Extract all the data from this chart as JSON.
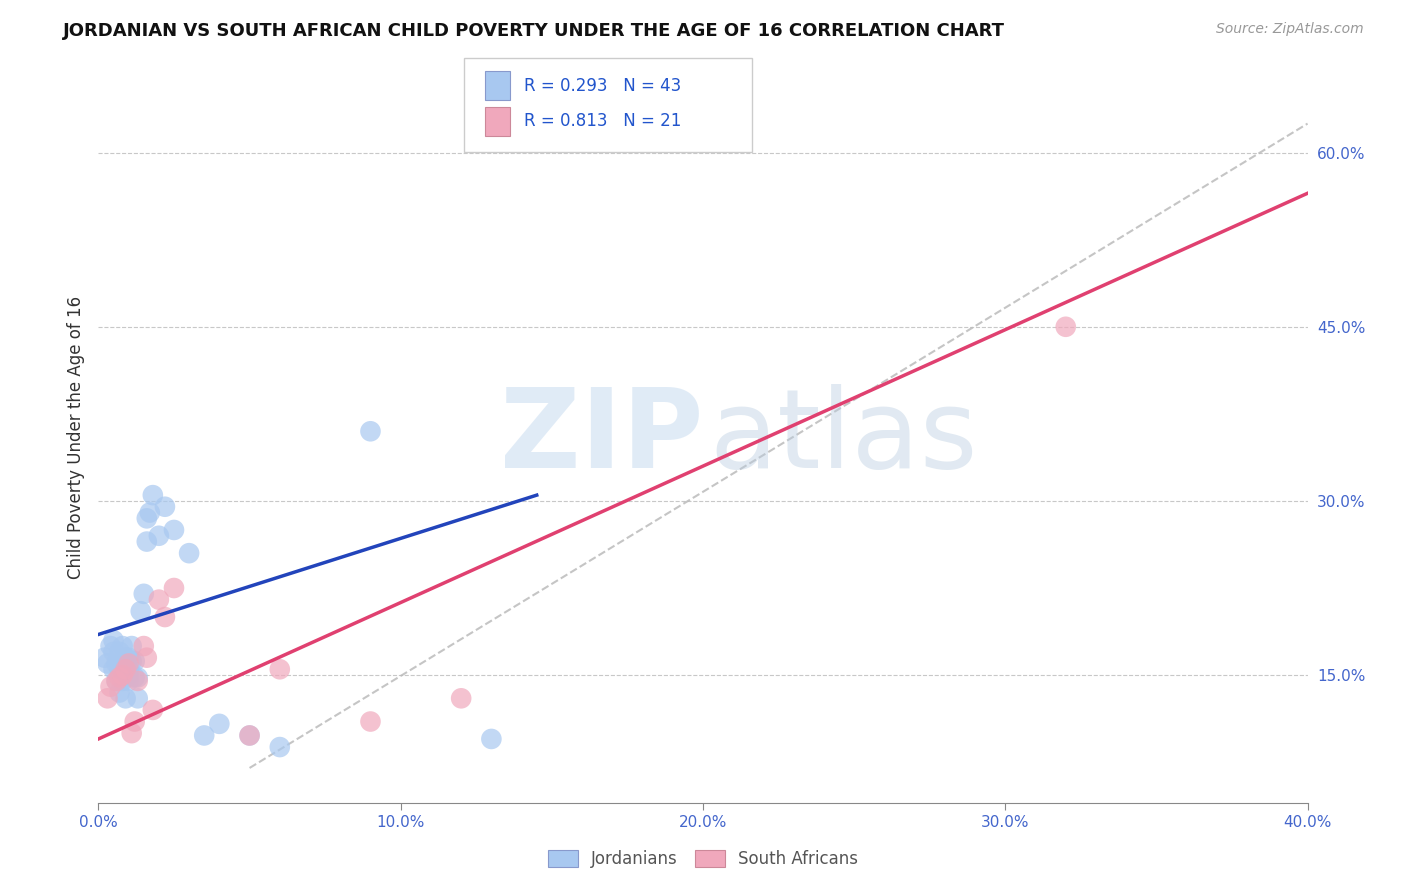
{
  "title": "JORDANIAN VS SOUTH AFRICAN CHILD POVERTY UNDER THE AGE OF 16 CORRELATION CHART",
  "source": "Source: ZipAtlas.com",
  "ylabel": "Child Poverty Under the Age of 16",
  "xlim": [
    0.0,
    0.4
  ],
  "ylim": [
    0.04,
    0.67
  ],
  "xticks": [
    0.0,
    0.1,
    0.2,
    0.3,
    0.4
  ],
  "xtick_labels": [
    "0.0%",
    "10.0%",
    "20.0%",
    "30.0%",
    "40.0%"
  ],
  "yticks_right": [
    0.15,
    0.3,
    0.45,
    0.6
  ],
  "ytick_right_labels": [
    "15.0%",
    "30.0%",
    "45.0%",
    "60.0%"
  ],
  "grid_color": "#c8c8c8",
  "background_color": "#ffffff",
  "jordanians_color": "#a8c8f0",
  "south_africans_color": "#f0a8bc",
  "jordan_trend_x": [
    0.0,
    0.145
  ],
  "jordan_trend_y": [
    0.185,
    0.305
  ],
  "sa_trend_x": [
    0.0,
    0.4
  ],
  "sa_trend_y": [
    0.095,
    0.565
  ],
  "refline_x": [
    0.05,
    0.4
  ],
  "refline_y": [
    0.07,
    0.625
  ],
  "jordan_scatter_x": [
    0.002,
    0.003,
    0.004,
    0.005,
    0.005,
    0.005,
    0.006,
    0.006,
    0.007,
    0.007,
    0.007,
    0.008,
    0.008,
    0.008,
    0.009,
    0.009,
    0.009,
    0.01,
    0.01,
    0.01,
    0.01,
    0.011,
    0.011,
    0.012,
    0.012,
    0.013,
    0.013,
    0.014,
    0.015,
    0.016,
    0.016,
    0.017,
    0.018,
    0.02,
    0.022,
    0.025,
    0.03,
    0.035,
    0.04,
    0.05,
    0.06,
    0.09,
    0.13
  ],
  "jordan_scatter_y": [
    0.165,
    0.16,
    0.175,
    0.155,
    0.17,
    0.18,
    0.145,
    0.16,
    0.135,
    0.155,
    0.17,
    0.145,
    0.16,
    0.175,
    0.13,
    0.148,
    0.165,
    0.145,
    0.155,
    0.165,
    0.15,
    0.162,
    0.175,
    0.148,
    0.162,
    0.13,
    0.148,
    0.205,
    0.22,
    0.265,
    0.285,
    0.29,
    0.305,
    0.27,
    0.295,
    0.275,
    0.255,
    0.098,
    0.108,
    0.098,
    0.088,
    0.36,
    0.095
  ],
  "sa_scatter_x": [
    0.003,
    0.004,
    0.006,
    0.007,
    0.008,
    0.009,
    0.01,
    0.011,
    0.012,
    0.013,
    0.015,
    0.016,
    0.018,
    0.02,
    0.022,
    0.025,
    0.05,
    0.06,
    0.09,
    0.12,
    0.32
  ],
  "sa_scatter_y": [
    0.13,
    0.14,
    0.145,
    0.148,
    0.15,
    0.155,
    0.16,
    0.1,
    0.11,
    0.145,
    0.175,
    0.165,
    0.12,
    0.215,
    0.2,
    0.225,
    0.098,
    0.155,
    0.11,
    0.13,
    0.45
  ]
}
